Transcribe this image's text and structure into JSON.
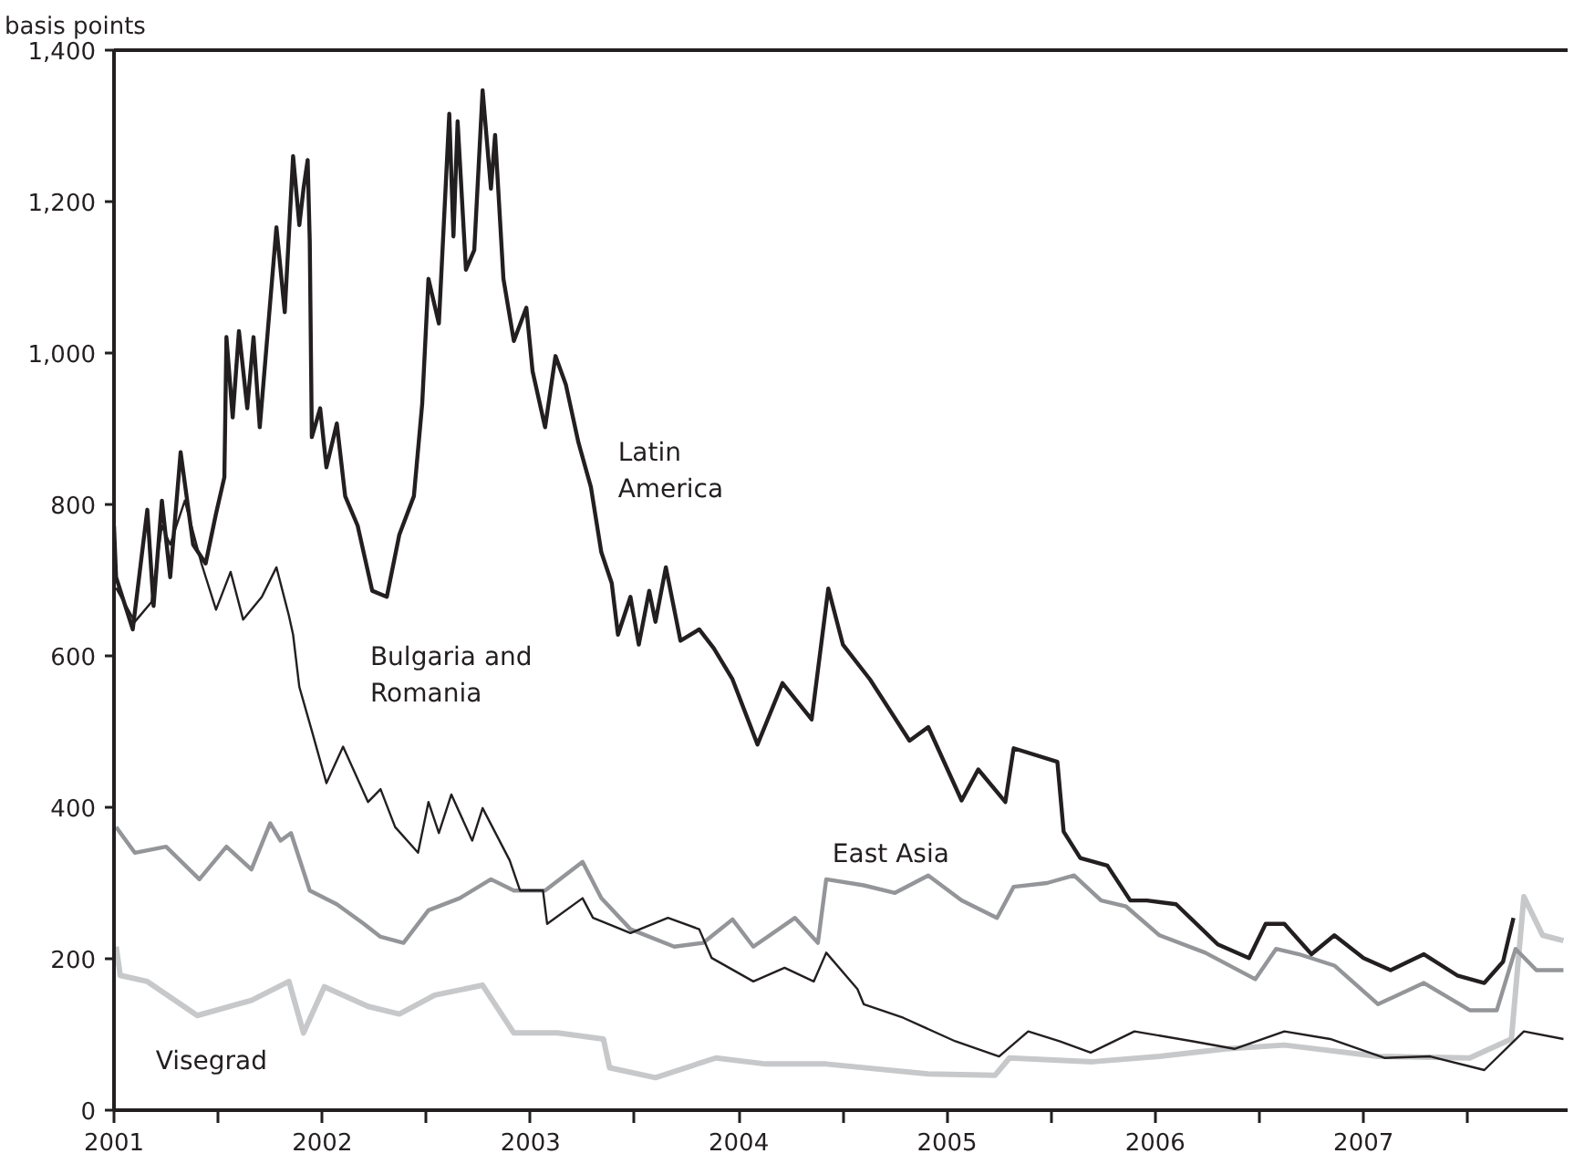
{
  "chart_data": {
    "type": "line",
    "ylabel": "basis points",
    "xlim": [
      2001,
      2007.98
    ],
    "ylim": [
      0,
      1400
    ],
    "xticks": [
      2001,
      {
        "value": 2001.5,
        "label": null
      },
      2002,
      {
        "value": 2002.5,
        "label": null
      },
      2003,
      {
        "value": 2003.5,
        "label": null
      },
      2004,
      {
        "value": 2004.5,
        "label": null
      },
      2005,
      {
        "value": 2005.5,
        "label": null
      },
      2006,
      {
        "value": 2006.5,
        "label": null
      },
      2007,
      {
        "value": 2007.5,
        "label": null
      }
    ],
    "yticks": [
      {
        "value": 0,
        "label": "0"
      },
      {
        "value": 200,
        "label": "200"
      },
      {
        "value": 400,
        "label": "400"
      },
      {
        "value": 600,
        "label": "600"
      },
      {
        "value": 800,
        "label": "800"
      },
      {
        "value": 1000,
        "label": "1,000"
      },
      {
        "value": 1200,
        "label": "1,200"
      },
      {
        "value": 1400,
        "label": "1,400"
      }
    ],
    "grid": false,
    "marker": "none",
    "line_style": "solid",
    "series": [
      {
        "name": "Latin America",
        "color": "#231f20",
        "x": [
          2001.0,
          2001.01,
          2001.09,
          2001.16,
          2001.19,
          2001.23,
          2001.27,
          2001.32,
          2001.38,
          2001.44,
          2001.49,
          2001.53,
          2001.54,
          2001.57,
          2001.6,
          2001.64,
          2001.67,
          2001.7,
          2001.75,
          2001.78,
          2001.82,
          2001.86,
          2001.89,
          2001.91,
          2001.93,
          2001.94,
          2001.95,
          2001.99,
          2002.02,
          2002.07,
          2002.11,
          2002.17,
          2002.24,
          2002.31,
          2002.37,
          2002.44,
          2002.48,
          2002.51,
          2002.56,
          2002.61,
          2002.63,
          2002.65,
          2002.69,
          2002.73,
          2002.77,
          2002.81,
          2002.83,
          2002.87,
          2002.92,
          2002.98,
          2003.01,
          2003.07,
          2003.12,
          2003.17,
          2003.23,
          2003.29,
          2003.34,
          2003.39,
          2003.42,
          2003.48,
          2003.52,
          2003.57,
          2003.6,
          2003.65,
          2003.72,
          2003.81,
          2003.88,
          2003.97,
          2004.09,
          2004.21,
          2004.35,
          2004.43,
          2004.5,
          2004.63,
          2004.82,
          2004.91,
          2005.07,
          2005.15,
          2005.28,
          2005.32,
          2005.53,
          2005.56,
          2005.64,
          2005.77,
          2005.88,
          2005.96,
          2006.1,
          2006.3,
          2006.45,
          2006.53,
          2006.62,
          2006.75,
          2006.86,
          2007.0,
          2007.13,
          2007.29,
          2007.45,
          2007.58,
          2007.67,
          2007.72
        ],
        "values": [
          772,
          704,
          635,
          793,
          666,
          805,
          704,
          869,
          747,
          722,
          788,
          836,
          1021,
          915,
          1029,
          927,
          1021,
          902,
          1067,
          1166,
          1054,
          1260,
          1169,
          1217,
          1255,
          1148,
          889,
          927,
          849,
          907,
          811,
          772,
          686,
          678,
          760,
          811,
          933,
          1098,
          1039,
          1316,
          1154,
          1306,
          1110,
          1136,
          1347,
          1217,
          1288,
          1098,
          1016,
          1060,
          976,
          902,
          996,
          958,
          882,
          823,
          737,
          696,
          628,
          678,
          615,
          686,
          645,
          717,
          620,
          635,
          610,
          569,
          483,
          564,
          516,
          689,
          615,
          569,
          488,
          506,
          409,
          450,
          407,
          478,
          460,
          368,
          333,
          323,
          277,
          277,
          272,
          219,
          201,
          246,
          246,
          206,
          231,
          201,
          185,
          206,
          178,
          168,
          196,
          254
        ]
      },
      {
        "name": "Bulgaria and Romania",
        "color": "#231f20",
        "x": [
          2001.01,
          2001.1,
          2001.18,
          2001.23,
          2001.27,
          2001.34,
          2001.42,
          2001.49,
          2001.56,
          2001.62,
          2001.71,
          2001.78,
          2001.84,
          2001.86,
          2001.89,
          2001.95,
          2002.02,
          2002.1,
          2002.22,
          2002.28,
          2002.35,
          2002.46,
          2002.51,
          2002.56,
          2002.62,
          2002.72,
          2002.77,
          2002.9,
          2002.95,
          2003.06,
          2003.08,
          2003.25,
          2003.3,
          2003.48,
          2003.66,
          2003.81,
          2003.87,
          2004.07,
          2004.22,
          2004.36,
          2004.42,
          2004.57,
          2004.6,
          2004.79,
          2005.04,
          2005.25,
          2005.39,
          2005.54,
          2005.69,
          2005.9,
          2006.18,
          2006.38,
          2006.62,
          2006.84,
          2007.1,
          2007.32,
          2007.58,
          2007.77,
          2007.96
        ],
        "values": [
          690,
          645,
          671,
          772,
          747,
          805,
          722,
          661,
          711,
          648,
          678,
          717,
          653,
          628,
          559,
          501,
          432,
          480,
          407,
          424,
          374,
          340,
          407,
          366,
          417,
          356,
          399,
          330,
          290,
          290,
          246,
          280,
          254,
          234,
          254,
          239,
          201,
          170,
          188,
          170,
          208,
          160,
          140,
          122,
          91,
          71,
          104,
          91,
          76,
          104,
          91,
          81,
          104,
          94,
          69,
          71,
          53,
          104,
          94
        ]
      },
      {
        "name": "East Asia",
        "color": "#939598",
        "x": [
          2001.01,
          2001.1,
          2001.25,
          2001.41,
          2001.54,
          2001.66,
          2001.75,
          2001.8,
          2001.85,
          2001.94,
          2002.07,
          2002.2,
          2002.28,
          2002.39,
          2002.51,
          2002.66,
          2002.81,
          2002.92,
          2003.07,
          2003.25,
          2003.34,
          2003.48,
          2003.69,
          2003.83,
          2003.97,
          2004.07,
          2004.27,
          2004.38,
          2004.42,
          2004.6,
          2004.75,
          2004.91,
          2005.07,
          2005.24,
          2005.32,
          2005.48,
          2005.61,
          2005.74,
          2005.86,
          2006.02,
          2006.24,
          2006.48,
          2006.58,
          2006.69,
          2006.86,
          2007.07,
          2007.29,
          2007.51,
          2007.64,
          2007.73,
          2007.83,
          2007.96
        ],
        "values": [
          374,
          340,
          348,
          305,
          348,
          318,
          379,
          356,
          366,
          290,
          272,
          246,
          229,
          221,
          264,
          280,
          305,
          290,
          290,
          328,
          280,
          239,
          216,
          221,
          252,
          216,
          254,
          221,
          305,
          297,
          287,
          310,
          277,
          254,
          295,
          300,
          310,
          277,
          269,
          231,
          208,
          173,
          213,
          206,
          191,
          140,
          168,
          132,
          132,
          213,
          185,
          185
        ]
      },
      {
        "name": "Visegrad",
        "color": "#c7c8ca",
        "x": [
          2001.01,
          2001.03,
          2001.16,
          2001.4,
          2001.66,
          2001.84,
          2001.91,
          2002.01,
          2002.22,
          2002.37,
          2002.54,
          2002.77,
          2002.92,
          2003.13,
          2003.35,
          2003.38,
          2003.6,
          2003.89,
          2004.13,
          2004.42,
          2004.91,
          2005.23,
          2005.3,
          2005.7,
          2006.02,
          2006.34,
          2006.62,
          2007.07,
          2007.51,
          2007.71,
          2007.77,
          2007.86,
          2007.96
        ],
        "values": [
          216,
          178,
          170,
          125,
          145,
          170,
          102,
          163,
          137,
          127,
          152,
          165,
          102,
          102,
          94,
          56,
          43,
          69,
          61,
          61,
          48,
          46,
          69,
          64,
          71,
          81,
          86,
          71,
          69,
          94,
          282,
          231,
          224
        ]
      }
    ]
  }
}
